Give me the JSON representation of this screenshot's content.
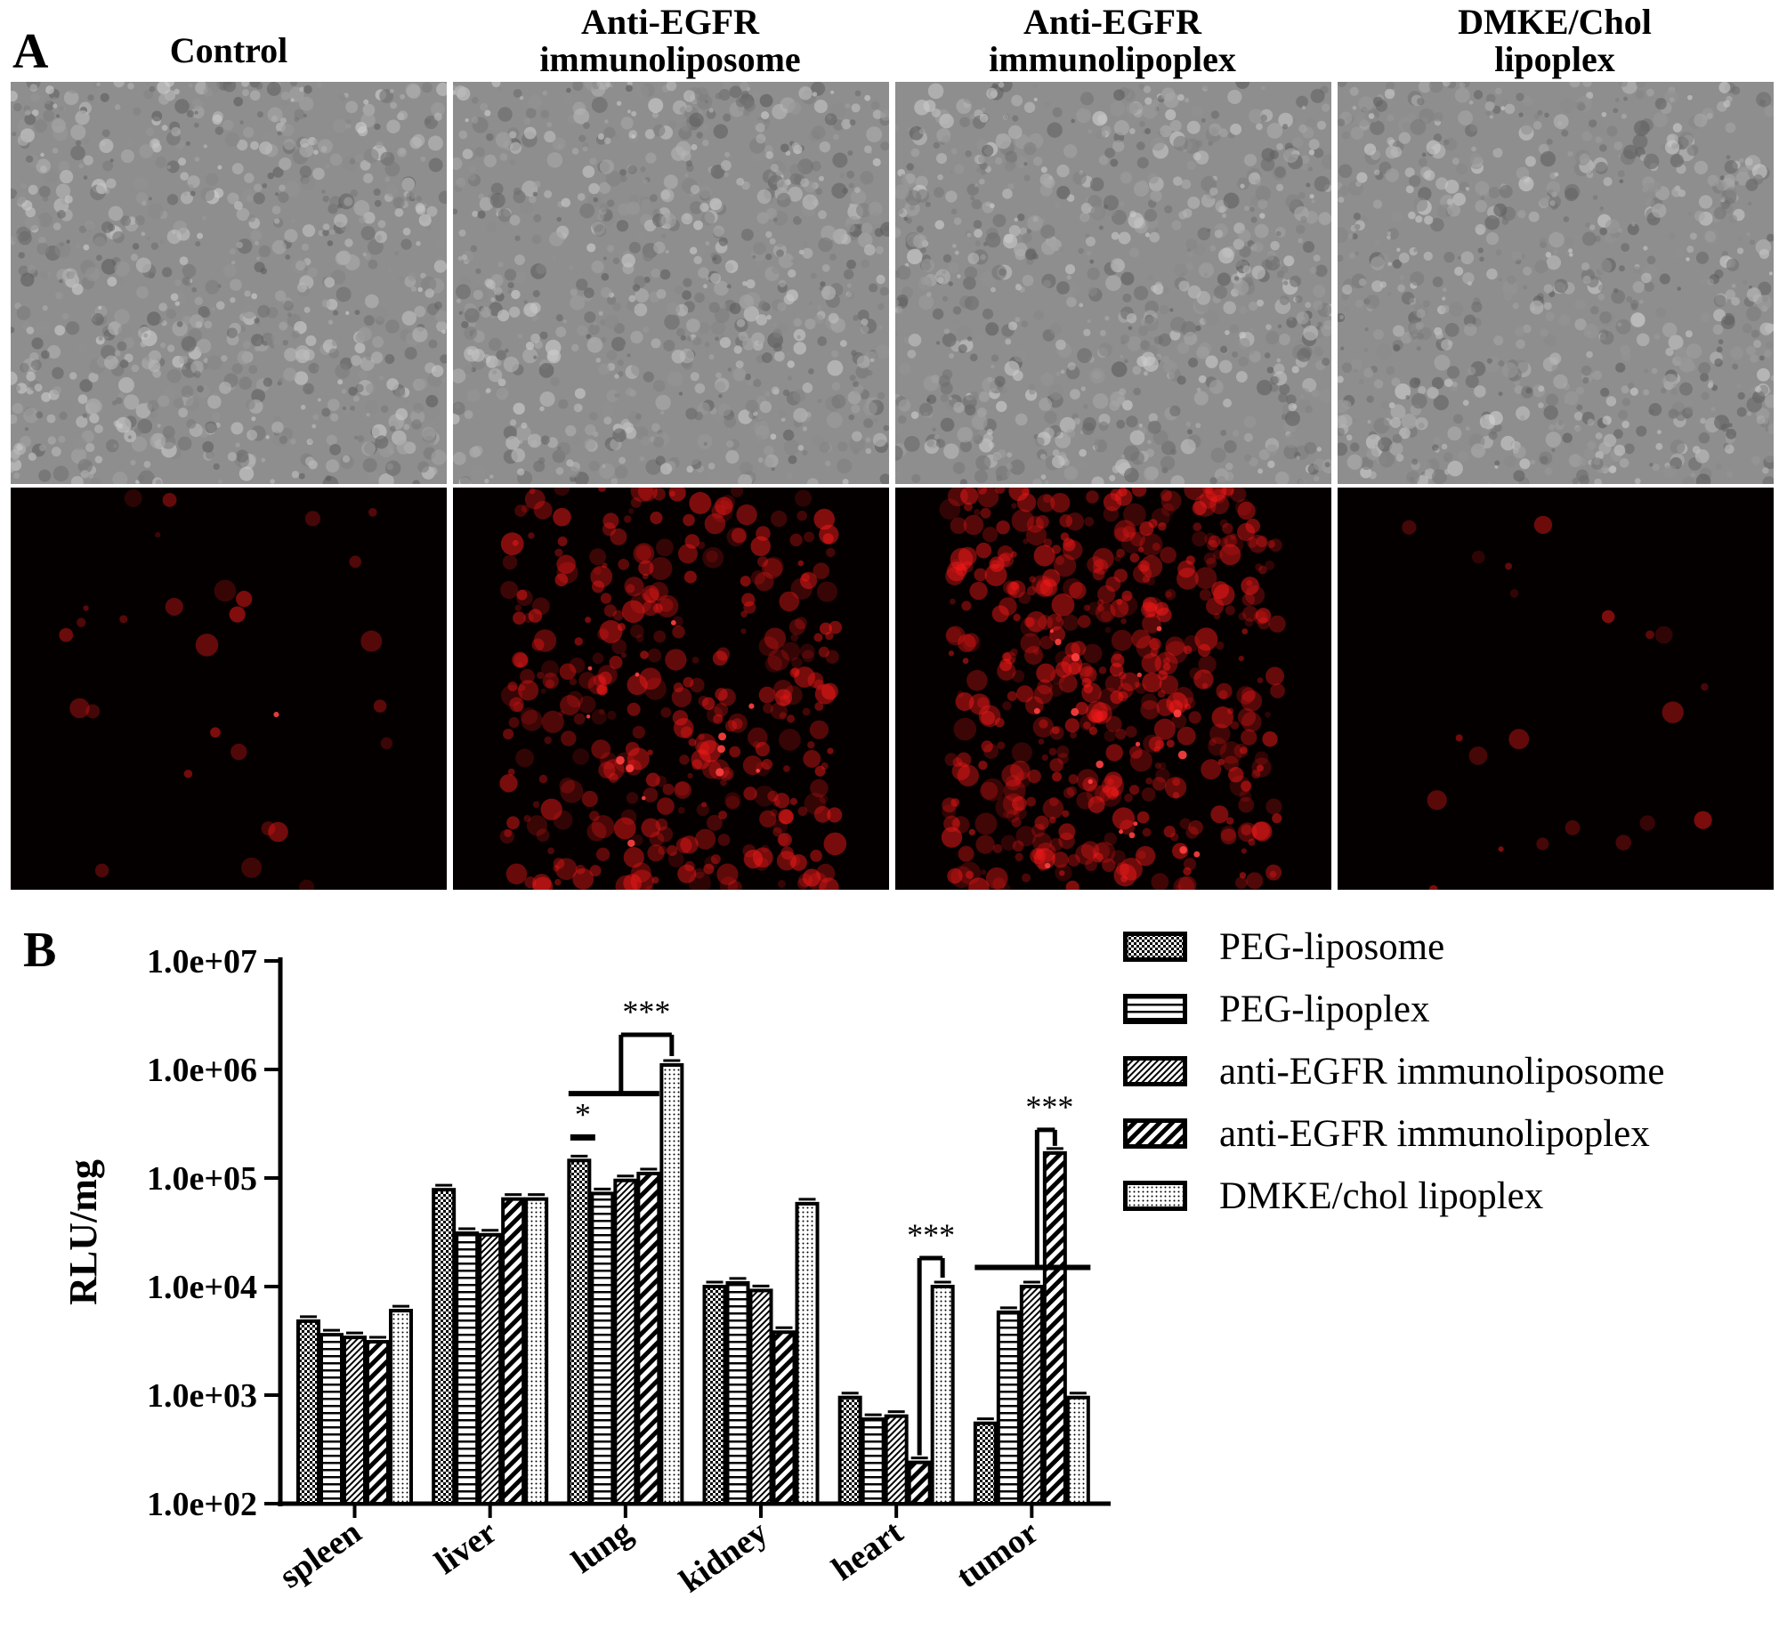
{
  "panel_a": {
    "label": "A",
    "columns": [
      {
        "title_line1": "Control",
        "title_line2": "",
        "fluorescence": 0.04
      },
      {
        "title_line1": "Anti-EGFR",
        "title_line2": "immunoliposome",
        "fluorescence": 0.55
      },
      {
        "title_line1": "Anti-EGFR",
        "title_line2": "immunolipoplex",
        "fluorescence": 0.75
      },
      {
        "title_line1": "DMKE/Chol",
        "title_line2": "lipoplex",
        "fluorescence": 0.03
      }
    ],
    "fluorescence_color": "#ff1a1a"
  },
  "panel_b": {
    "label": "B"
  },
  "chart_data": {
    "type": "bar",
    "y_scale": "log",
    "ylabel": "RLU/mg",
    "ylim": [
      100,
      10000000
    ],
    "y_ticks": [
      {
        "value": 100,
        "label": "1.0e+02"
      },
      {
        "value": 1000,
        "label": "1.0e+03"
      },
      {
        "value": 10000,
        "label": "1.0e+04"
      },
      {
        "value": 100000,
        "label": "1.0e+05"
      },
      {
        "value": 1000000,
        "label": "1.0e+06"
      },
      {
        "value": 10000000,
        "label": "1.0e+07"
      }
    ],
    "categories": [
      "spleen",
      "liver",
      "lung",
      "kidney",
      "heart",
      "tumor"
    ],
    "series": [
      {
        "name": "PEG-liposome",
        "pattern": "checker",
        "values": [
          4800,
          78000,
          145000,
          10000,
          950,
          550
        ]
      },
      {
        "name": "PEG-lipoplex",
        "pattern": "horizontal",
        "values": [
          3600,
          31000,
          72000,
          10800,
          600,
          5800
        ]
      },
      {
        "name": "anti-EGFR immunoliposome",
        "pattern": "fine-diagonal",
        "values": [
          3400,
          30000,
          95000,
          9200,
          640,
          10000
        ]
      },
      {
        "name": "anti-EGFR immunolipoplex",
        "pattern": "diagonal",
        "values": [
          3100,
          64000,
          110000,
          3800,
          240,
          170000
        ]
      },
      {
        "name": "DMKE/chol lipoplex",
        "pattern": "dotted",
        "values": [
          6000,
          64000,
          1100000,
          58000,
          10000,
          950
        ]
      }
    ],
    "annotations": [
      {
        "text": "*",
        "category": "lung"
      },
      {
        "text": "***",
        "category": "lung"
      },
      {
        "text": "***",
        "category": "heart"
      },
      {
        "text": "***",
        "category": "tumor"
      }
    ],
    "legend_position": "top-right"
  }
}
